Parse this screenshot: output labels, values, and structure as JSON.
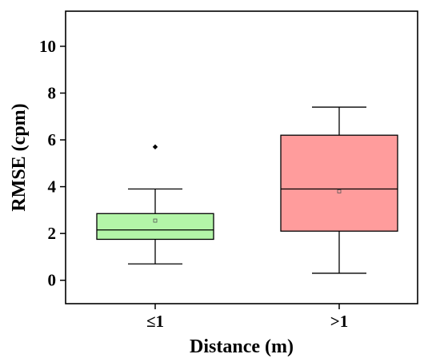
{
  "chart_data": {
    "type": "box",
    "xlabel": "Distance (m)",
    "ylabel": "RMSE (cpm)",
    "ylim": [
      -1,
      11.5
    ],
    "yticks": [
      0,
      2,
      4,
      6,
      8,
      10
    ],
    "categories": [
      "≤1",
      ">1"
    ],
    "boxes": [
      {
        "category": "≤1",
        "whisker_low": 0.7,
        "q1": 1.75,
        "median": 2.15,
        "q3": 2.85,
        "whisker_high": 3.9,
        "mean": 2.55,
        "outliers": [
          5.7
        ],
        "color": "#b3f5a8"
      },
      {
        "category": ">1",
        "whisker_low": 0.3,
        "q1": 2.1,
        "median": 3.9,
        "q3": 6.2,
        "whisker_high": 7.4,
        "mean": 3.8,
        "outliers": [],
        "color": "#ff9c9c"
      }
    ],
    "grid": false,
    "legend": "none"
  }
}
